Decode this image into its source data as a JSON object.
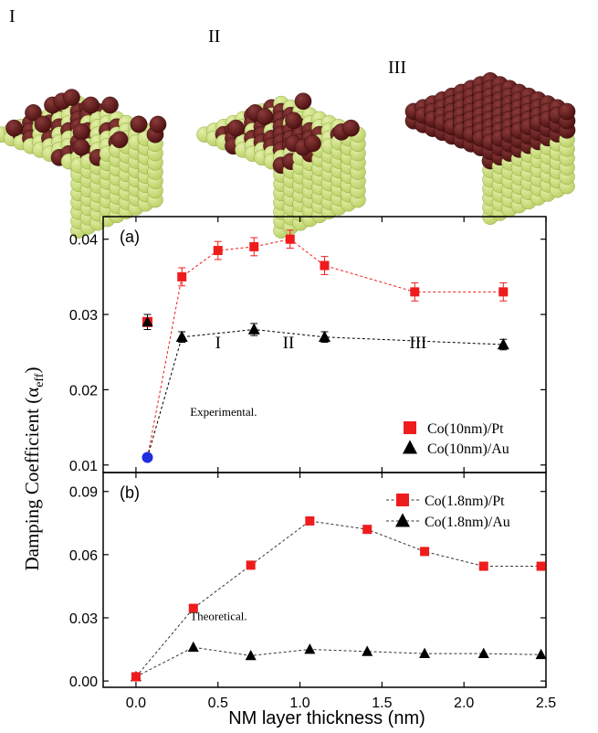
{
  "figure": {
    "cluster_labels": [
      "I",
      "II",
      "III"
    ],
    "colors": {
      "substrate_atom": "#b8cf62",
      "substrate_atom_light": "#e3efa8",
      "overlayer_atom": "#4a0f0f",
      "overlayer_atom_light": "#8a3a3a",
      "pt_series": "#ee1c1c",
      "au_series": "#000000",
      "reference_point": "#1f2fe0"
    },
    "y_axis_label": "Damping Coefficient (α",
    "y_axis_label_sub": "eff",
    "y_axis_label_close": ")"
  },
  "chart_data": [
    {
      "type": "scatter",
      "panel_label": "(a)",
      "annotation": "Experimental.",
      "region_labels": [
        {
          "text": "I",
          "x": 0.5,
          "y": 0.0255
        },
        {
          "text": "II",
          "x": 0.93,
          "y": 0.0255
        },
        {
          "text": "III",
          "x": 1.72,
          "y": 0.0255
        }
      ],
      "xlim": [
        -0.2,
        2.5
      ],
      "ylim": [
        0.009,
        0.043
      ],
      "yticks": [
        0.01,
        0.02,
        0.03,
        0.04
      ],
      "ytick_labels": [
        "0.01",
        "0.02",
        "0.03",
        "0.04"
      ],
      "legend_position": "bottom-right",
      "series": [
        {
          "name": "Co(10nm)/Pt",
          "marker": "square",
          "color": "#ee1c1c",
          "x": [
            0.07,
            0.28,
            0.5,
            0.72,
            0.94,
            1.15,
            1.7,
            2.24
          ],
          "y": [
            0.011,
            0.035,
            0.0385,
            0.039,
            0.04,
            0.0365,
            0.033,
            0.033
          ],
          "yerr": [
            0,
            0.0012,
            0.0012,
            0.0012,
            0.0012,
            0.0012,
            0.0012,
            0.0012
          ]
        },
        {
          "name": "Co(10nm)/Au",
          "marker": "triangle",
          "color": "#000000",
          "x": [
            0.07,
            0.28,
            0.72,
            1.15,
            2.24
          ],
          "y": [
            0.011,
            0.027,
            0.028,
            0.027,
            0.026
          ],
          "yerr": [
            0,
            0.0007,
            0.0008,
            0.0007,
            0.0007
          ]
        }
      ],
      "shared_start_point": {
        "x": 0.07,
        "y": 0.029,
        "yerr": 0.001
      },
      "reference_point": {
        "x": 0.07,
        "y": 0.011
      }
    },
    {
      "type": "scatter",
      "panel_label": "(b)",
      "annotation": "Theoretical.",
      "xlabel": "NM layer thickness (nm)",
      "xlim": [
        -0.2,
        2.5
      ],
      "xticks": [
        0.0,
        0.5,
        1.0,
        1.5,
        2.0,
        2.5
      ],
      "xtick_labels": [
        "0.0",
        "0.5",
        "1.0",
        "1.5",
        "2.0",
        "2.5"
      ],
      "ylim": [
        -0.003,
        0.099
      ],
      "yticks": [
        0.0,
        0.03,
        0.06,
        0.09
      ],
      "ytick_labels": [
        "0.00",
        "0.03",
        "0.06",
        "0.09"
      ],
      "legend_position": "top-right",
      "series": [
        {
          "name": "Co(1.8nm)/Pt",
          "marker": "square",
          "color": "#ee1c1c",
          "x": [
            0.0,
            0.35,
            0.7,
            1.06,
            1.41,
            1.76,
            2.12,
            2.47
          ],
          "y": [
            0.002,
            0.0345,
            0.055,
            0.076,
            0.072,
            0.0615,
            0.0545,
            0.0545
          ]
        },
        {
          "name": "Co(1.8nm)/Au",
          "marker": "triangle",
          "color": "#000000",
          "x": [
            0.0,
            0.35,
            0.7,
            1.06,
            1.41,
            1.76,
            2.12,
            2.47
          ],
          "y": [
            0.002,
            0.016,
            0.012,
            0.015,
            0.014,
            0.013,
            0.013,
            0.0125
          ]
        }
      ]
    }
  ]
}
